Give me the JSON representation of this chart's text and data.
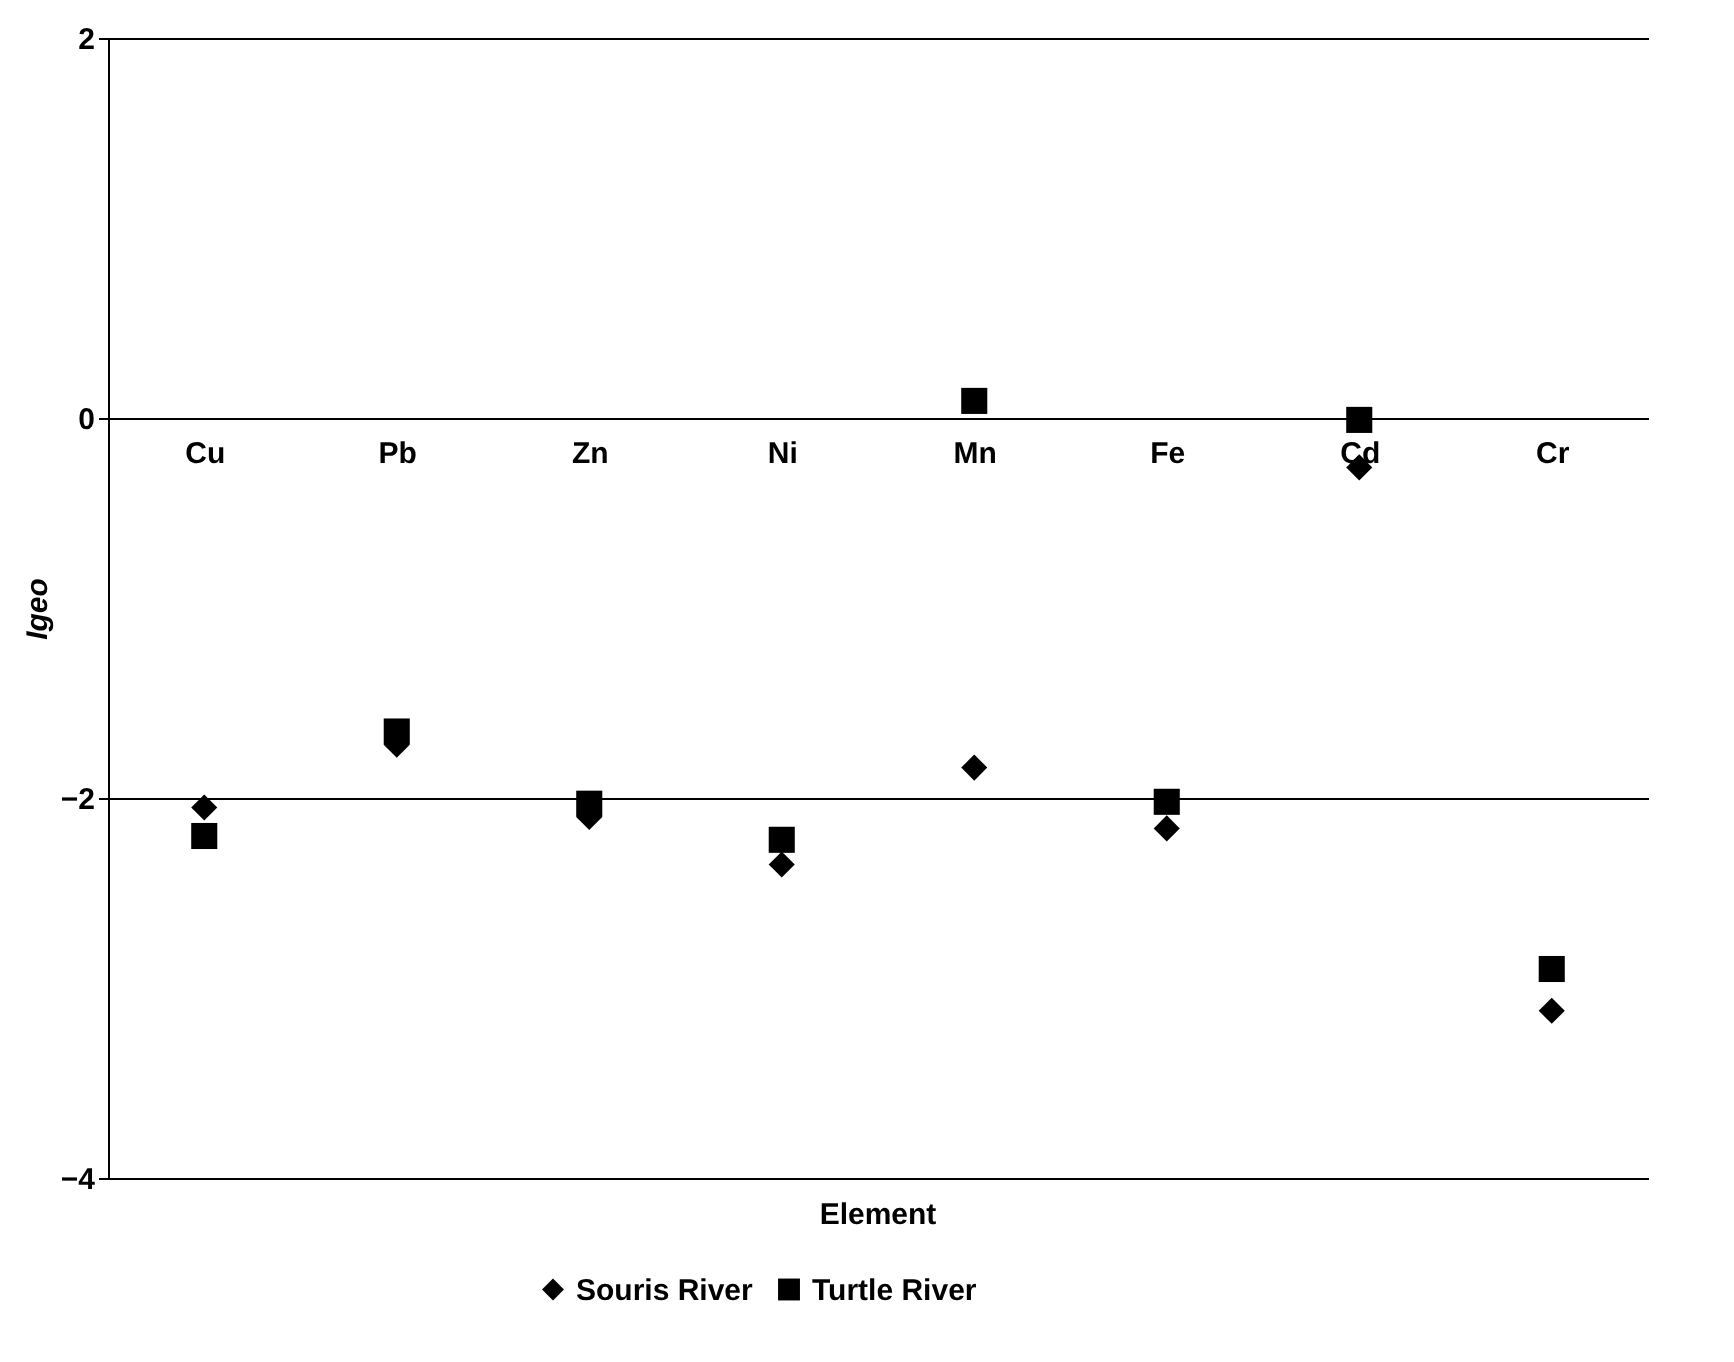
{
  "chart_data": {
    "type": "scatter",
    "xlabel": "Element",
    "ylabel": "Igeo",
    "categories": [
      "Cu",
      "Pb",
      "Zn",
      "Ni",
      "Mn",
      "Fe",
      "Cd",
      "Cr"
    ],
    "series": [
      {
        "name": "Souris River",
        "color": "#000000",
        "marker": "diamond",
        "values": [
          -2.05,
          -1.72,
          -2.1,
          -2.35,
          -1.84,
          -2.16,
          -0.26,
          -3.12
        ]
      },
      {
        "name": "Turtle River",
        "color": "#000000",
        "marker": "square",
        "values": [
          -2.2,
          -1.65,
          -2.03,
          -2.22,
          0.09,
          -2.02,
          -0.01,
          -2.9
        ]
      }
    ],
    "ylim": [
      -4,
      2
    ],
    "yticks": [
      -4,
      -2,
      0,
      2
    ],
    "grid": "y",
    "legend": "bottom"
  }
}
